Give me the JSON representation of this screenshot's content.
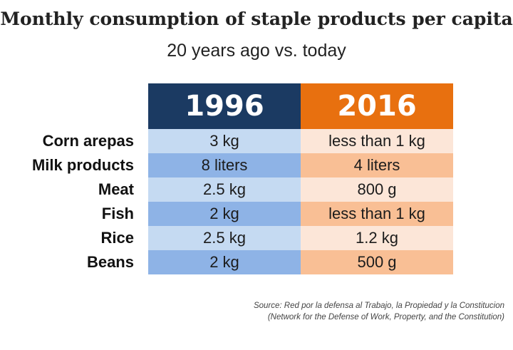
{
  "title": "Monthly consumption of staple products per capita",
  "subtitle": "20 years ago vs. today",
  "chart_data": {
    "type": "table",
    "columns": [
      "1996",
      "2016"
    ],
    "rows": [
      {
        "label": "Corn arepas",
        "values": [
          "3 kg",
          "less than 1 kg"
        ]
      },
      {
        "label": "Milk products",
        "values": [
          "8 liters",
          "4 liters"
        ]
      },
      {
        "label": "Meat",
        "values": [
          "2.5 kg",
          "800 g"
        ]
      },
      {
        "label": "Fish",
        "values": [
          "2 kg",
          "less than 1 kg"
        ]
      },
      {
        "label": "Rice",
        "values": [
          "2.5 kg",
          "1.2 kg"
        ]
      },
      {
        "label": "Beans",
        "values": [
          "2 kg",
          "500 g"
        ]
      }
    ]
  },
  "source": {
    "line1": "Source: Red por la defensa al Trabajo, la Propiedad y la Constitucion",
    "line2": "(Network for the Defense of Work, Property, and the Constitution)"
  },
  "colors": {
    "col1_header": "#1b3a62",
    "col2_header": "#e8700f",
    "col1_light": "#c5daf2",
    "col1_dark": "#8eb3e6",
    "col2_light": "#fce6d8",
    "col2_dark": "#f9bf95"
  }
}
